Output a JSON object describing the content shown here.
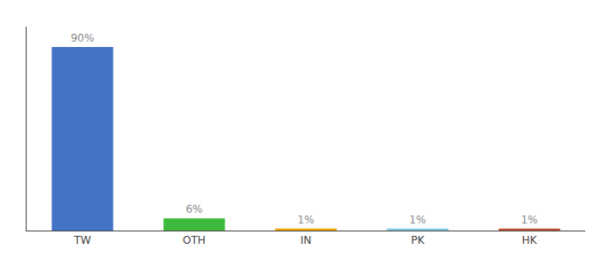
{
  "chart_data": {
    "type": "bar",
    "categories": [
      "TW",
      "OTH",
      "IN",
      "PK",
      "HK"
    ],
    "values": [
      90,
      6,
      1,
      1,
      1
    ],
    "value_labels": [
      "90%",
      "6%",
      "1%",
      "1%",
      "1%"
    ],
    "colors": [
      "#4472c4",
      "#3dba3d",
      "#f0a500",
      "#7ec8e3",
      "#c0512f"
    ],
    "ylim": [
      0,
      100
    ],
    "data_labels": true,
    "tick_labels": "x",
    "grid": false
  }
}
